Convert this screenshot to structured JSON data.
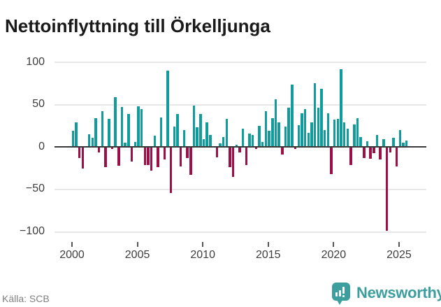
{
  "title": "Nettoinflyttning till Örkelljunga",
  "source_label": "Källa: SCB",
  "brand": {
    "name": "Newsworthy"
  },
  "colors": {
    "positive_bar": "#109c9c",
    "negative_bar": "#9c1047",
    "grid_line": "#e7e7e7",
    "zero_axis": "#3a3a3a",
    "axis_text": "#3d3d3d",
    "title_text": "#1a1a1a",
    "source_text": "#808080",
    "brand_teal": "#3d9e9e",
    "background": "#ffffff"
  },
  "y_axis": {
    "ticks": [
      {
        "label": "100",
        "value": 100
      },
      {
        "label": "50",
        "value": 50
      },
      {
        "label": "0",
        "value": 0
      },
      {
        "label": "−50",
        "value": -50
      },
      {
        "label": "−100",
        "value": -100
      }
    ]
  },
  "x_axis": {
    "ticks": [
      {
        "label": "2000"
      },
      {
        "label": "2005"
      },
      {
        "label": "2010"
      },
      {
        "label": "2015"
      },
      {
        "label": "2020"
      },
      {
        "label": "2025"
      }
    ],
    "quarters_per_tick_interval": 20
  },
  "chart_data": {
    "type": "bar",
    "title": "Nettoinflyttning till Örkelljunga",
    "frequency": "quarterly",
    "x_start": "2000 Q1",
    "x_end": "2025 Q3",
    "ylim": [
      -100,
      100
    ],
    "grid": "horizontal",
    "legend": "none",
    "positive_color": "#109c9c",
    "negative_color": "#9c1047",
    "values_by_year": {
      "2000": [
        19,
        29,
        -13,
        -25
      ],
      "2001": [
        0,
        15,
        11,
        34
      ],
      "2002": [
        -6,
        42,
        -24,
        33
      ],
      "2003": [
        -2,
        59,
        -22,
        47
      ],
      "2004": [
        5,
        39,
        -17,
        6
      ],
      "2005": [
        48,
        45,
        -21,
        -21
      ],
      "2006": [
        -28,
        13,
        -24,
        35
      ],
      "2007": [
        -15,
        90,
        -54,
        24
      ],
      "2008": [
        39,
        -23,
        20,
        -13
      ],
      "2009": [
        -33,
        49,
        23,
        39
      ],
      "2010": [
        9,
        29,
        14,
        0
      ],
      "2011": [
        -12,
        4,
        12,
        33
      ],
      "2012": [
        -24,
        -35,
        3,
        -6
      ],
      "2013": [
        22,
        -21,
        16,
        14
      ],
      "2014": [
        -2,
        25,
        6,
        42
      ],
      "2015": [
        19,
        34,
        56,
        29
      ],
      "2016": [
        -9,
        24,
        46,
        74
      ],
      "2017": [
        -2,
        26,
        40,
        45
      ],
      "2018": [
        17,
        29,
        75,
        46
      ],
      "2019": [
        69,
        20,
        40,
        -32
      ],
      "2020": [
        32,
        33,
        92,
        29
      ],
      "2021": [
        22,
        -21,
        27,
        34
      ],
      "2022": [
        12,
        -13,
        7,
        -14
      ],
      "2023": [
        -7,
        14,
        -15,
        9
      ],
      "2024": [
        -99,
        -6,
        11,
        -23
      ],
      "2025": [
        20,
        5,
        8
      ]
    }
  }
}
